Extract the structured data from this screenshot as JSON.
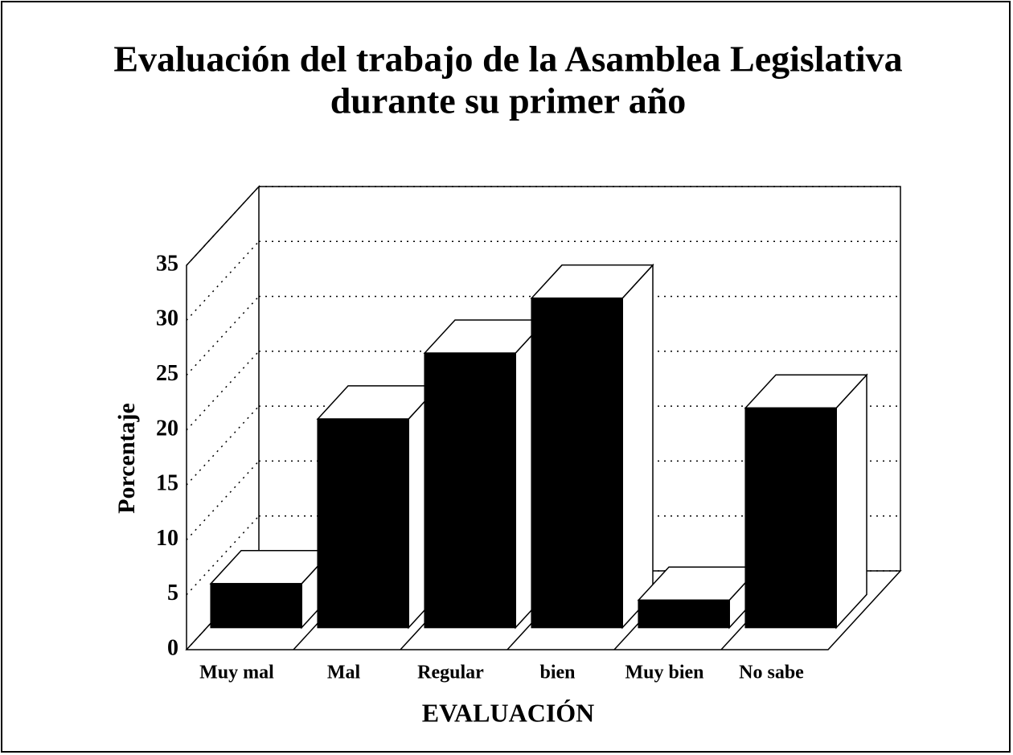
{
  "chart_data": {
    "type": "bar3d",
    "title": [
      "Evaluación del trabajo de la Asamblea Legislativa",
      "durante su primer año"
    ],
    "xlabel": "EVALUACIÓN",
    "ylabel": "Porcentaje",
    "categories": [
      "Muy mal",
      "Mal",
      "Regular",
      "bien",
      "Muy bien",
      "No sabe"
    ],
    "values": [
      4,
      19,
      25,
      30,
      2.5,
      20
    ],
    "color": "#000000",
    "ylim": [
      0,
      35
    ],
    "yticks": [
      0,
      5,
      10,
      15,
      20,
      25,
      30,
      35
    ],
    "grid": true
  }
}
